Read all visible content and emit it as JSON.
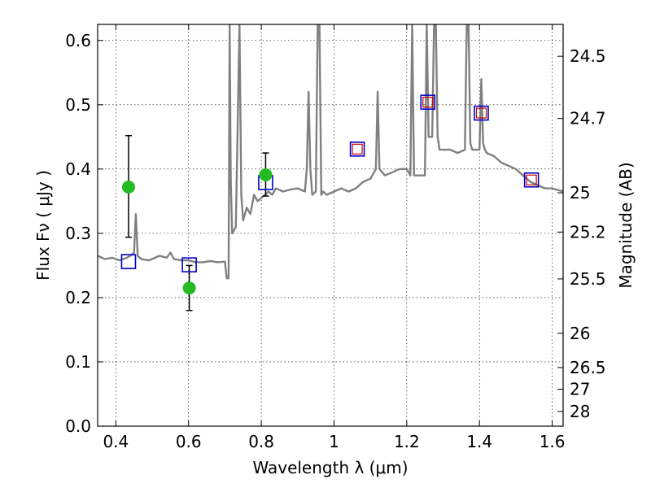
{
  "chart_data": {
    "type": "line+scatter",
    "xlabel": "Wavelength  λ (μm)",
    "ylabel": "Flux  Fν  ( μJy )",
    "y2label": "Magnitude (AB)",
    "xlim": [
      0.35,
      1.63
    ],
    "ylim": [
      0.0,
      0.625
    ],
    "grid": true,
    "xticks": [
      0.4,
      0.6,
      0.8,
      1.0,
      1.2,
      1.4,
      1.6
    ],
    "xtick_labels": [
      "0.4",
      "0.6",
      "0.8",
      "1",
      "1.2",
      "1.4",
      "1.6"
    ],
    "yticks": [
      0.0,
      0.1,
      0.2,
      0.3,
      0.4,
      0.5,
      0.6
    ],
    "ytick_labels": [
      "0.0",
      "0.1",
      "0.2",
      "0.3",
      "0.4",
      "0.5",
      "0.6"
    ],
    "y2ticks": [
      {
        "mag": 24.5,
        "label": "24.5"
      },
      {
        "mag": 24.7,
        "label": "24.7"
      },
      {
        "mag": 25.0,
        "label": "25"
      },
      {
        "mag": 25.2,
        "label": "25.2"
      },
      {
        "mag": 25.5,
        "label": "25.5"
      },
      {
        "mag": 26.0,
        "label": "26"
      },
      {
        "mag": 26.5,
        "label": "26.5"
      },
      {
        "mag": 27.0,
        "label": "27"
      },
      {
        "mag": 28.0,
        "label": "28"
      }
    ],
    "spectrum": {
      "color": "#808080",
      "x": [
        0.35,
        0.37,
        0.39,
        0.41,
        0.43,
        0.44,
        0.45,
        0.455,
        0.46,
        0.47,
        0.49,
        0.5,
        0.52,
        0.54,
        0.55,
        0.56,
        0.58,
        0.6,
        0.62,
        0.64,
        0.66,
        0.68,
        0.7,
        0.705,
        0.71,
        0.713,
        0.716,
        0.72,
        0.73,
        0.74,
        0.745,
        0.75,
        0.755,
        0.76,
        0.77,
        0.78,
        0.79,
        0.8,
        0.81,
        0.82,
        0.83,
        0.84,
        0.86,
        0.88,
        0.9,
        0.92,
        0.925,
        0.93,
        0.935,
        0.94,
        0.95,
        0.955,
        0.96,
        0.965,
        0.97,
        0.98,
        1.0,
        1.02,
        1.04,
        1.06,
        1.08,
        1.1,
        1.115,
        1.12,
        1.125,
        1.14,
        1.16,
        1.18,
        1.2,
        1.21,
        1.215,
        1.22,
        1.25,
        1.255,
        1.26,
        1.27,
        1.275,
        1.28,
        1.285,
        1.29,
        1.3,
        1.32,
        1.34,
        1.36,
        1.365,
        1.37,
        1.375,
        1.38,
        1.4,
        1.405,
        1.41,
        1.415,
        1.42,
        1.44,
        1.46,
        1.48,
        1.5,
        1.52,
        1.54,
        1.56,
        1.58,
        1.6,
        1.63
      ],
      "y": [
        0.265,
        0.26,
        0.262,
        0.258,
        0.262,
        0.265,
        0.27,
        0.33,
        0.265,
        0.26,
        0.258,
        0.26,
        0.265,
        0.262,
        0.27,
        0.26,
        0.258,
        0.258,
        0.255,
        0.255,
        0.257,
        0.255,
        0.256,
        0.23,
        0.23,
        0.625,
        0.38,
        0.3,
        0.31,
        0.625,
        0.36,
        0.32,
        0.33,
        0.34,
        0.33,
        0.36,
        0.35,
        0.355,
        0.36,
        0.365,
        0.36,
        0.37,
        0.365,
        0.368,
        0.37,
        0.365,
        0.4,
        0.52,
        0.4,
        0.36,
        0.365,
        0.625,
        0.625,
        0.36,
        0.365,
        0.36,
        0.365,
        0.37,
        0.365,
        0.37,
        0.38,
        0.385,
        0.4,
        0.52,
        0.4,
        0.39,
        0.395,
        0.4,
        0.4,
        0.39,
        0.625,
        0.39,
        0.39,
        0.625,
        0.45,
        0.45,
        0.625,
        0.625,
        0.45,
        0.43,
        0.43,
        0.43,
        0.425,
        0.43,
        0.625,
        0.625,
        0.44,
        0.43,
        0.43,
        0.54,
        0.44,
        0.43,
        0.425,
        0.42,
        0.41,
        0.405,
        0.4,
        0.39,
        0.38,
        0.375,
        0.37,
        0.37,
        0.365
      ]
    },
    "blue_squares": {
      "name": "",
      "color": "#0000cc",
      "x": [
        0.435,
        0.602,
        0.812,
        1.064,
        1.258,
        1.405,
        1.543
      ],
      "y": [
        0.256,
        0.251,
        0.379,
        0.431,
        0.504,
        0.487,
        0.383
      ]
    },
    "red_squares": {
      "name": "",
      "color": "#cc0000",
      "x": [
        1.064,
        1.258,
        1.405,
        1.543
      ],
      "y": [
        0.431,
        0.504,
        0.487,
        0.383
      ]
    },
    "green_points": {
      "name": "",
      "color": "#22bb22",
      "x": [
        0.435,
        0.602,
        0.812
      ],
      "y": [
        0.372,
        0.215,
        0.391
      ],
      "yerr_low": [
        0.078,
        0.035,
        0.033
      ],
      "yerr_high": [
        0.08,
        0.035,
        0.034
      ]
    }
  }
}
